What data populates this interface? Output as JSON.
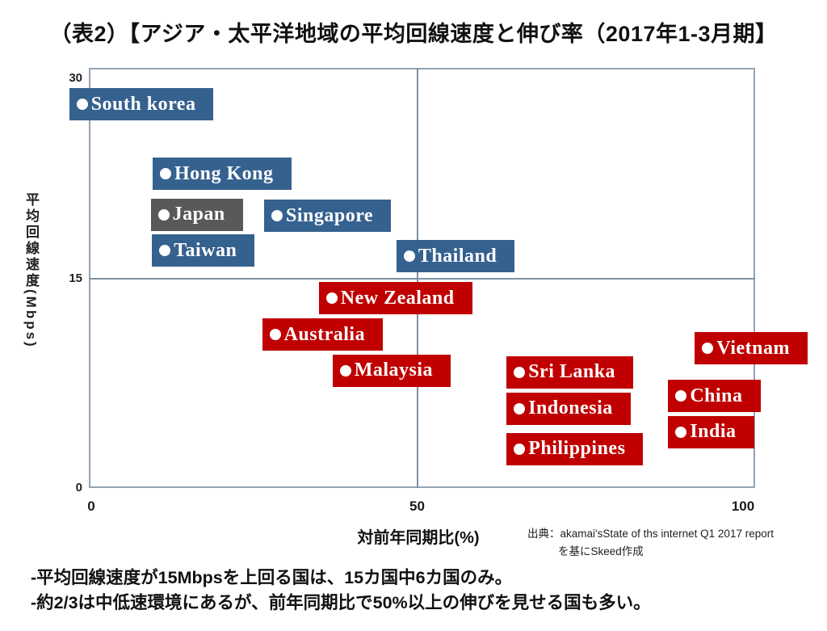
{
  "page": {
    "title": "（表2）【アジア・太平洋地域の平均回線速度と伸び率（2017年1-3月期】",
    "source": {
      "line1": "出典：akamai'sState of ths internet Q1 2017 report",
      "line2": "を基にSkeed作成"
    },
    "notes": [
      "-平均回線速度が15Mbpsを上回る国は、15カ国中6カ国のみ。",
      "-約2/3は中低速環境にあるが、前年同期比で50%以上の伸びを見せる国も多い。"
    ]
  },
  "chart_data": {
    "type": "scatter",
    "xlabel": "対前年同期比(%)",
    "ylabel": "平均回線速度(Mbps)",
    "xlim": [
      0,
      102
    ],
    "ylim": [
      0,
      30.5
    ],
    "x_ticks": [
      0,
      50,
      100
    ],
    "y_ticks": [
      30,
      15,
      0
    ],
    "grid": "reference-cross-only",
    "legend": "none",
    "reference_lines": {
      "x_growth_pct": 50,
      "y_speed_mbps": 15
    },
    "colors": {
      "above_15mbps": "#35618f",
      "below_15mbps": "#c00000",
      "japan": "#595959",
      "marker": "#ffffff",
      "axis_line": "#92a3b4"
    },
    "series": [
      {
        "name": "blue-group-above-15mbps",
        "color": "#35618f",
        "points": [
          {
            "label": "South korea",
            "growth_pct": -1.4,
            "speed_mbps": 27.5
          },
          {
            "label": "Hong Kong",
            "growth_pct": 11.4,
            "speed_mbps": 22.5
          },
          {
            "label": "Singapore",
            "growth_pct": 28.5,
            "speed_mbps": 19.5
          },
          {
            "label": "Taiwan",
            "growth_pct": 11.3,
            "speed_mbps": 17.0
          },
          {
            "label": "Thailand",
            "growth_pct": 48.8,
            "speed_mbps": 16.6
          }
        ]
      },
      {
        "name": "gray-group-japan",
        "color": "#595959",
        "points": [
          {
            "label": "Japan",
            "growth_pct": 11.1,
            "speed_mbps": 19.6
          }
        ]
      },
      {
        "name": "red-group-below-15mbps",
        "color": "#c00000",
        "points": [
          {
            "label": "New Zealand",
            "growth_pct": 36.9,
            "speed_mbps": 13.6
          },
          {
            "label": "Australia",
            "growth_pct": 28.2,
            "speed_mbps": 11.0
          },
          {
            "label": "Malaysia",
            "growth_pct": 39.0,
            "speed_mbps": 8.4
          },
          {
            "label": "Sri Lanka",
            "growth_pct": 65.7,
            "speed_mbps": 8.3
          },
          {
            "label": "Indonesia",
            "growth_pct": 65.7,
            "speed_mbps": 5.7
          },
          {
            "label": "Philippines",
            "growth_pct": 65.7,
            "speed_mbps": 2.8
          },
          {
            "label": "Vietnam",
            "growth_pct": 94.6,
            "speed_mbps": 10.0
          },
          {
            "label": "China",
            "growth_pct": 90.5,
            "speed_mbps": 6.6
          },
          {
            "label": "India",
            "growth_pct": 90.5,
            "speed_mbps": 4.0
          }
        ]
      }
    ]
  }
}
